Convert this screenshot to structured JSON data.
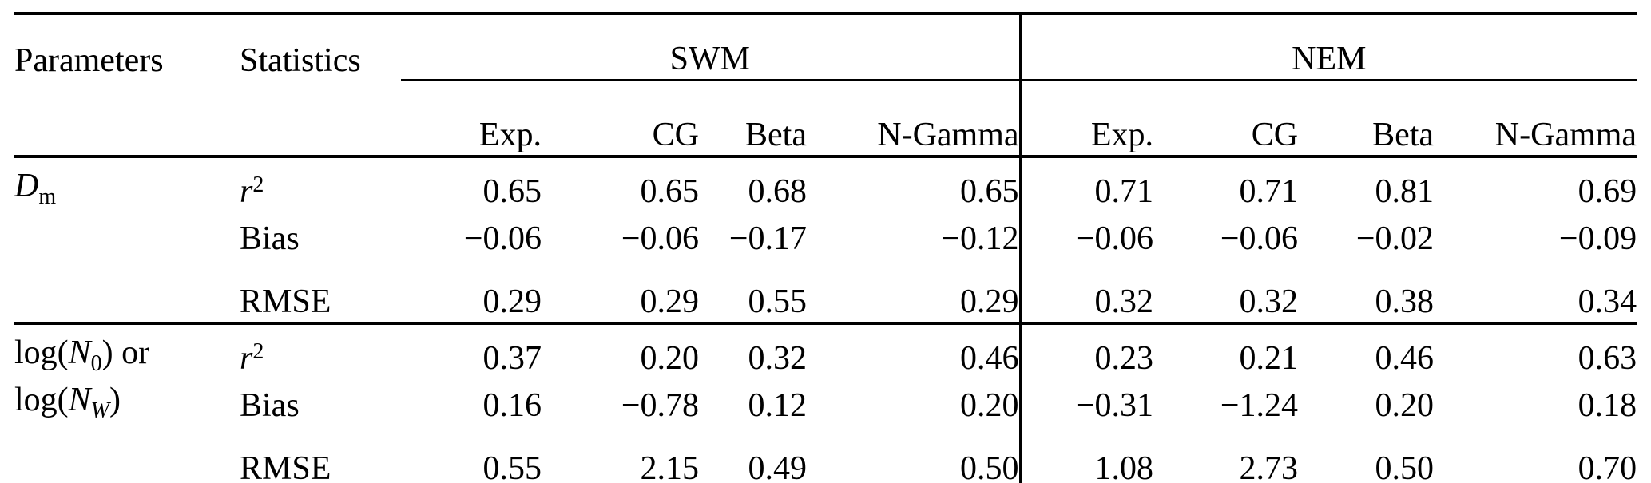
{
  "table_header": {
    "parameters": "Parameters",
    "statistics": "Statistics",
    "group_swm": "SWM",
    "group_nem": "NEM",
    "models": [
      "Exp.",
      "CG",
      "Beta",
      "N-Gamma"
    ]
  },
  "stat_labels": {
    "r_base": "r",
    "r_sup": "2",
    "bias": "Bias",
    "rmse": "RMSE"
  },
  "groups": {
    "g1": {
      "param_line1": {
        "pre": "",
        "var": "D",
        "sub": "m",
        "post": ""
      },
      "rows": {
        "r2": [
          "0.65",
          "0.65",
          "0.68",
          "0.65",
          "0.71",
          "0.71",
          "0.81",
          "0.69"
        ],
        "bias": [
          "−0.06",
          "−0.06",
          "−0.17",
          "−0.12",
          "−0.06",
          "−0.06",
          "−0.02",
          "−0.09"
        ],
        "rmse": [
          "0.29",
          "0.29",
          "0.55",
          "0.29",
          "0.32",
          "0.32",
          "0.38",
          "0.34"
        ]
      }
    },
    "g2": {
      "param_line1": {
        "pre": "log(",
        "var": "N",
        "sub": "0",
        "post": ") or"
      },
      "param_line2": {
        "pre": "log(",
        "var": "N",
        "sub": "W",
        "post": ")"
      },
      "rows": {
        "r2": [
          "0.37",
          "0.20",
          "0.32",
          "0.46",
          "0.23",
          "0.21",
          "0.46",
          "0.63"
        ],
        "bias": [
          "0.16",
          "−0.78",
          "0.12",
          "0.20",
          "−0.31",
          "−1.24",
          "0.20",
          "0.18"
        ],
        "rmse": [
          "0.55",
          "2.15",
          "0.49",
          "0.50",
          "1.08",
          "2.73",
          "0.50",
          "0.70"
        ]
      }
    }
  }
}
